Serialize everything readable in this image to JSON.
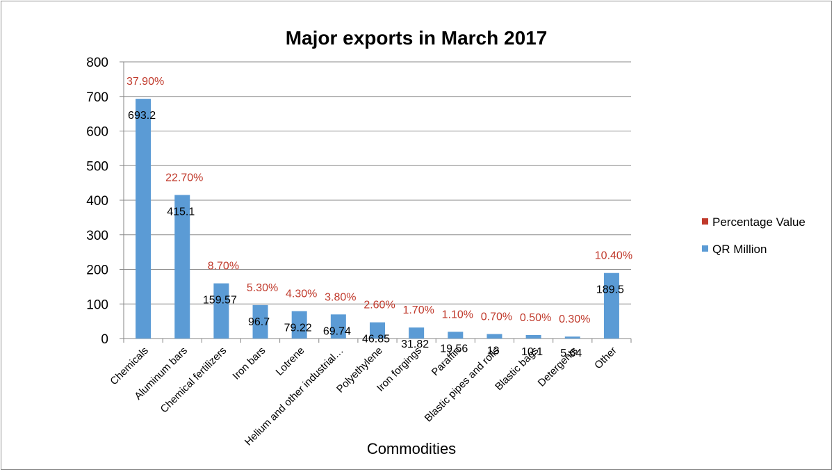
{
  "chart_data": {
    "type": "bar",
    "title": "Major exports in March 2017",
    "xlabel": "Commodities",
    "ylabel": "",
    "ylim": [
      0,
      800
    ],
    "yticks": [
      0,
      100,
      200,
      300,
      400,
      500,
      600,
      700,
      800
    ],
    "categories": [
      "Chemicals",
      "Aluminum bars",
      "Chemical fertilizers",
      "Iron bars",
      "Lotrene",
      "Helium and other industrial…",
      "Polyethylene",
      "Iron forgings",
      "Paraffin",
      "Blastic pipes and rolls",
      "Blastic bags",
      "Detergents",
      "Other"
    ],
    "series": [
      {
        "name": "QR Million",
        "color": "#5b9bd5",
        "values": [
          693.2,
          415.1,
          159.57,
          96.7,
          79.22,
          69.74,
          46.85,
          31.82,
          19.56,
          13,
          10.1,
          5.64,
          189.5
        ],
        "labels": [
          "693.2",
          "415.1",
          "159.57",
          "96.7",
          "79.22",
          "69.74",
          "46.85",
          "31.82",
          "19.56",
          "13",
          "10.1",
          "5.64",
          "189.5"
        ]
      },
      {
        "name": "Percentage Value",
        "color": "#c0392b",
        "values": [
          37.9,
          22.7,
          8.7,
          5.3,
          4.3,
          3.8,
          2.6,
          1.7,
          1.1,
          0.7,
          0.5,
          0.3,
          10.4
        ],
        "labels": [
          "37.90%",
          "22.70%",
          "8.70%",
          "5.30%",
          "4.30%",
          "3.80%",
          "2.60%",
          "1.70%",
          "1.10%",
          "0.70%",
          "0.50%",
          "0.30%",
          "10.40%"
        ]
      }
    ],
    "legend_position": "right",
    "grid": true
  }
}
